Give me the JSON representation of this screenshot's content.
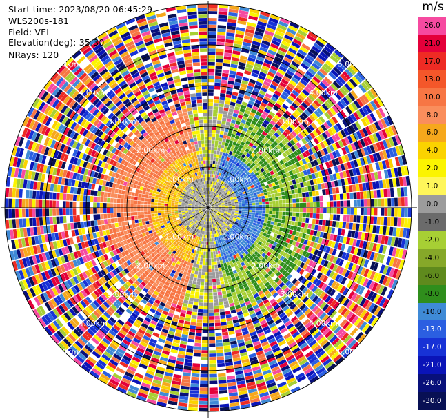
{
  "header": {
    "start_time": "Start time: 2023/08/20 06:45:29",
    "site": "WLS200s-181",
    "field": "Field: VEL",
    "elevation": "Elevation(deg): 35.30",
    "nrays": "NRays: 120"
  },
  "colorbar": {
    "unit": "m/s",
    "levels": [
      {
        "label": "26.0",
        "color": "#f64aa0"
      },
      {
        "label": "21.0",
        "color": "#e4003a"
      },
      {
        "label": "17.0",
        "color": "#ee2b24"
      },
      {
        "label": "13.0",
        "color": "#f4572a"
      },
      {
        "label": "10.0",
        "color": "#f77644"
      },
      {
        "label": "8.0",
        "color": "#fa8e5c"
      },
      {
        "label": "6.0",
        "color": "#f6a81c"
      },
      {
        "label": "4.0",
        "color": "#fbd300"
      },
      {
        "label": "2.0",
        "color": "#fbf400"
      },
      {
        "label": "1.0",
        "color": "#fff65a"
      },
      {
        "label": "0.0",
        "color": "#9c9c9c"
      },
      {
        "label": "-1.0",
        "color": "#6b6b6b"
      },
      {
        "label": "-2.0",
        "color": "#a7cf34"
      },
      {
        "label": "-4.0",
        "color": "#86a829"
      },
      {
        "label": "-6.0",
        "color": "#5f8a1d"
      },
      {
        "label": "-8.0",
        "color": "#2f8e1c"
      },
      {
        "label": "-10.0",
        "color": "#3f8ad6"
      },
      {
        "label": "-13.0",
        "color": "#2b5fe1"
      },
      {
        "label": "-17.0",
        "color": "#1732d6"
      },
      {
        "label": "-21.0",
        "color": "#0a14b8"
      },
      {
        "label": "-26.0",
        "color": "#08107a"
      },
      {
        "label": "-30.0",
        "color": "#081054"
      }
    ]
  },
  "ring_labels": [
    "1.00km",
    "2.00km",
    "3.00km",
    "4.00km",
    "5.00km"
  ]
}
